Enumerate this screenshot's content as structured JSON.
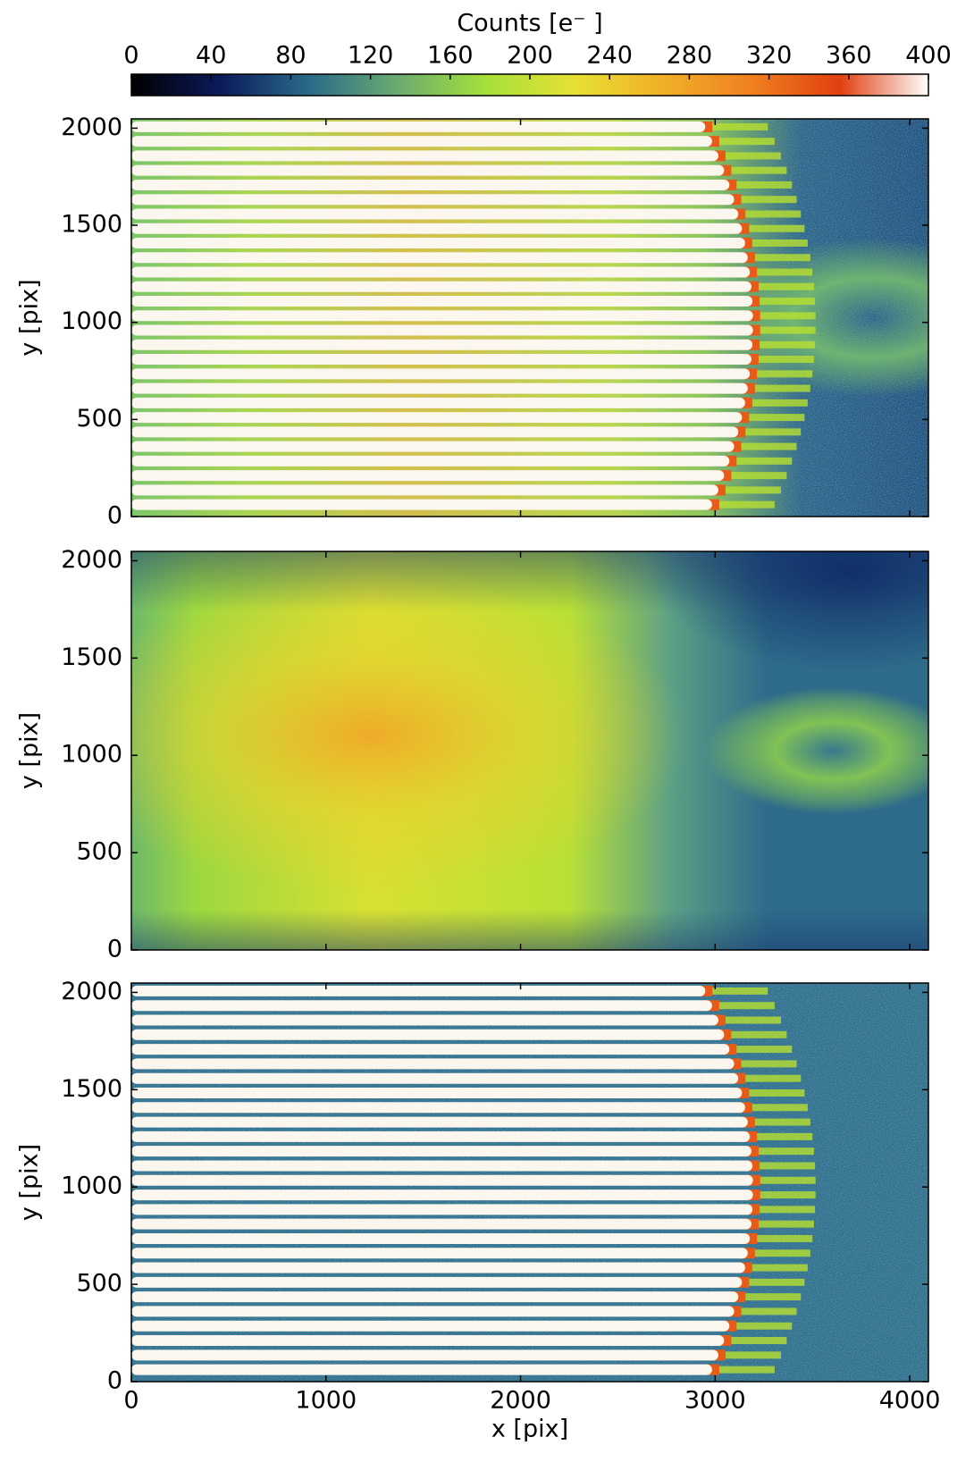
{
  "chart_data": [
    {
      "type": "colorbar",
      "title": "Counts [e⁻ ]",
      "clim": [
        0,
        400
      ],
      "ticks": [
        0,
        40,
        80,
        120,
        160,
        200,
        240,
        280,
        320,
        360,
        400
      ],
      "colors": [
        "#000000",
        "#0a1a5a",
        "#2a6a88",
        "#6aaa70",
        "#a6e03a",
        "#e6e034",
        "#f0b028",
        "#f08020",
        "#e04010",
        "#ffffff"
      ]
    },
    {
      "type": "image",
      "ylabel": "y [pix]",
      "xlim": [
        0,
        4096
      ],
      "ylim": [
        0,
        2048
      ],
      "xticks": [
        0,
        1000,
        2000,
        3000,
        4000
      ],
      "yticks": [
        0,
        500,
        1000,
        1500,
        2000
      ]
    },
    {
      "type": "image",
      "ylabel": "y [pix]",
      "xlim": [
        0,
        4096
      ],
      "ylim": [
        0,
        2048
      ],
      "xticks": [
        0,
        1000,
        2000,
        3000,
        4000
      ],
      "yticks": [
        0,
        500,
        1000,
        1500,
        2000
      ]
    },
    {
      "type": "image",
      "ylabel": "y [pix]",
      "xlabel": "x [pix]",
      "xlim": [
        0,
        4096
      ],
      "ylim": [
        0,
        2048
      ],
      "xticks": [
        0,
        1000,
        2000,
        3000,
        4000
      ],
      "yticks": [
        0,
        500,
        1000,
        1500,
        2000
      ]
    }
  ]
}
